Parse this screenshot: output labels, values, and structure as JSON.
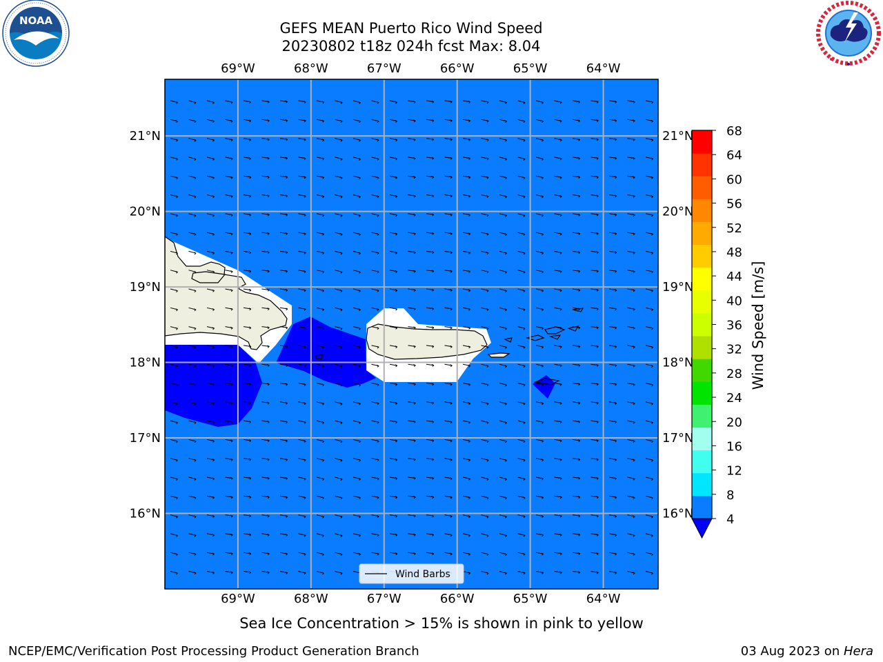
{
  "title": {
    "line1": "GEFS MEAN Puerto Rico Wind Speed",
    "line2": "20230802 t18z 024h fcst   Max: 8.04"
  },
  "logos": {
    "left": {
      "name": "NOAA",
      "ring_text": "NATIONAL OCEANIC AND ATMOSPHERIC ADMINISTRATION • U.S. DEPARTMENT OF COMMERCE •",
      "colors": [
        "#1d4f91",
        "#0a7cc1",
        "#ffffff"
      ]
    },
    "right": {
      "ring_text": "NATIONAL WEATHER SERVICE",
      "colors": [
        "#d7263d",
        "#1e6fd1",
        "#1a237e"
      ]
    }
  },
  "map": {
    "lon_ticks": [
      "69°W",
      "68°W",
      "67°W",
      "66°W",
      "65°W",
      "64°W"
    ],
    "lat_ticks": [
      "21°N",
      "20°N",
      "19°N",
      "18°N",
      "17°N",
      "16°N"
    ],
    "lon_range": [
      -70,
      -63.25
    ],
    "lat_range": [
      15,
      21.75
    ],
    "grid": true,
    "ocean_color": "#0a7cff",
    "land_color": "#efefdf",
    "low_wind_color": "#0000ff",
    "land_masked_color": "#ffffff"
  },
  "legend": {
    "label": "Wind Barbs",
    "placement": "bottom-center"
  },
  "colorbar": {
    "label": "Wind Speed [m/s]",
    "ticks": [
      "68",
      "64",
      "60",
      "56",
      "52",
      "48",
      "44",
      "40",
      "36",
      "32",
      "28",
      "24",
      "20",
      "16",
      "12",
      "8",
      "4"
    ],
    "levels": [
      4,
      8,
      12,
      16,
      20,
      24,
      28,
      32,
      36,
      40,
      44,
      48,
      52,
      56,
      60,
      64,
      68
    ],
    "colors": [
      "#0a7cff",
      "#00e6ff",
      "#40ffee",
      "#a0ffef",
      "#40f070",
      "#00e400",
      "#40d800",
      "#b0e000",
      "#ccff00",
      "#e8ff00",
      "#ffff00",
      "#ffcc00",
      "#ffaa00",
      "#ff8800",
      "#ff5c00",
      "#ff3300",
      "#ff0000"
    ],
    "extend_low_color": "#0000ff"
  },
  "footer": {
    "ice_note": "Sea Ice Concentration > 15% is shown in pink to yellow",
    "left": "NCEP/EMC/Verification Post Processing Product Generation Branch",
    "date": "03 Aug 2023 on ",
    "host": "Hera"
  }
}
